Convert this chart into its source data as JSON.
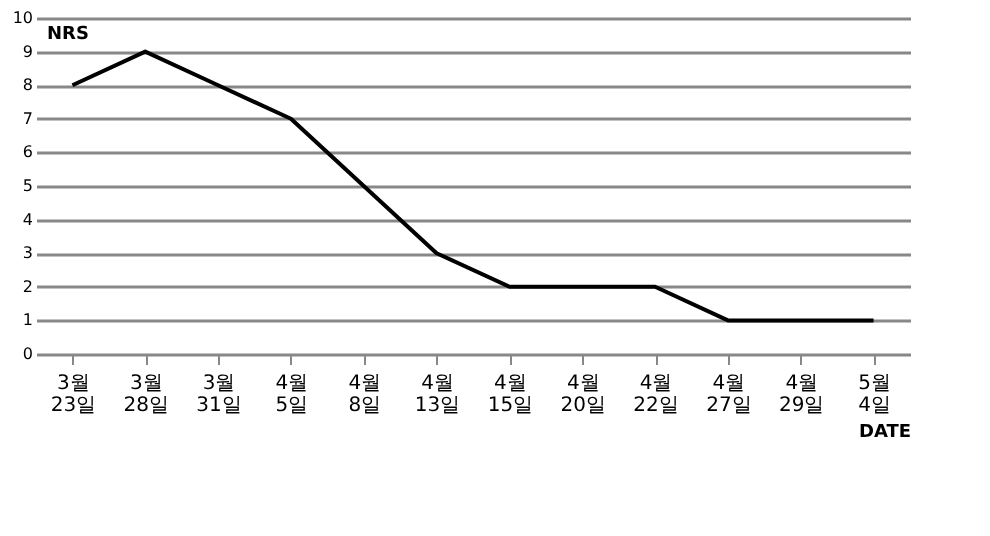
{
  "chart_data": {
    "type": "line",
    "xlabel": "DATE",
    "ylabel": "NRS",
    "categories": [
      "3월 23일",
      "3월 28일",
      "3월 31일",
      "4월 5일",
      "4월 8일",
      "4월 13일",
      "4월 15일",
      "4월 20일",
      "4월 22일",
      "4월 27일",
      "4월 29일",
      "5월 4일"
    ],
    "series": [
      {
        "color": "#000000",
        "values": [
          8,
          9,
          8,
          7,
          5,
          3,
          2,
          2,
          2,
          1,
          1,
          1
        ]
      }
    ],
    "ylim": [
      0,
      10
    ],
    "yticks": [
      0,
      1,
      2,
      3,
      4,
      5,
      6,
      7,
      8,
      9,
      10
    ],
    "grid": "y",
    "legend": false,
    "marker": "none",
    "line_style": "solid"
  }
}
